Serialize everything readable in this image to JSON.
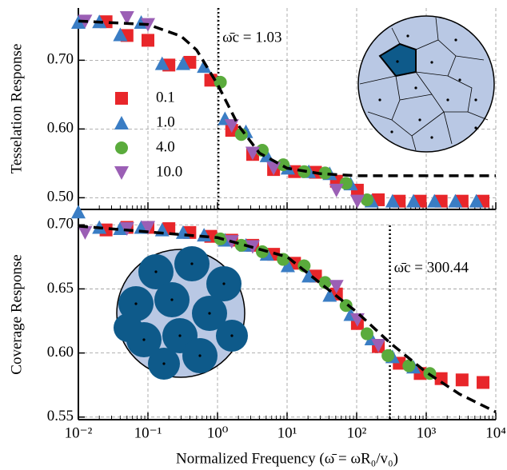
{
  "chart_data": [
    {
      "type": "scatter",
      "ylabel": "Tesselation Response",
      "xlog": true,
      "grid": true,
      "legend": "center left",
      "xlim": [
        0.01,
        10000
      ],
      "ylim": [
        0.483,
        0.776
      ],
      "yticks": [
        {
          "value": 0.5,
          "label": "0.50"
        },
        {
          "value": 0.6,
          "label": "0.60"
        },
        {
          "value": 0.7,
          "label": "0.70"
        }
      ],
      "vline": {
        "x": 1.03,
        "label": "ω̄c = 1.03"
      },
      "series": [
        {
          "name": "0.1",
          "color": "#e8262a",
          "marker": "s",
          "x": [
            0.025,
            0.05,
            0.1,
            0.2,
            0.4,
            0.8,
            1.6,
            3.2,
            6.4,
            12.8,
            25.6,
            51.2,
            102.4,
            204.8,
            409.6,
            819.2,
            1638,
            3277,
            6554
          ],
          "values": [
            0.756,
            0.736,
            0.729,
            0.693,
            0.697,
            0.671,
            0.598,
            0.563,
            0.541,
            0.538,
            0.537,
            0.524,
            0.511,
            0.497,
            0.495,
            0.495,
            0.495,
            0.495,
            0.495
          ]
        },
        {
          "name": "1.0",
          "color": "#3a7dc4",
          "marker": "^",
          "x": [
            0.01,
            0.02,
            0.04,
            0.08,
            0.16,
            0.32,
            0.64,
            1.28,
            2.56,
            5.12,
            10.24,
            20.48,
            40.96,
            81.92,
            163.8,
            327.7,
            655.4,
            1311,
            2621,
            5243
          ],
          "values": [
            0.755,
            0.756,
            0.737,
            0.755,
            0.695,
            0.695,
            0.691,
            0.615,
            0.596,
            0.561,
            0.543,
            0.538,
            0.535,
            0.52,
            0.495,
            0.495,
            0.495,
            0.495,
            0.495,
            0.495
          ]
        },
        {
          "name": "4.0",
          "color": "#5aab3c",
          "marker": "o",
          "x": [
            1.1,
            2.2,
            4.4,
            8.8,
            17.6,
            35.2,
            70.4,
            140.8
          ],
          "values": [
            0.668,
            0.592,
            0.569,
            0.548,
            0.538,
            0.536,
            0.521,
            0.497
          ]
        },
        {
          "name": "10.0",
          "color": "#9b5fb5",
          "marker": "v",
          "x": [
            0.0125,
            0.05,
            0.1,
            1.6,
            3.2,
            6.4,
            51.2,
            102.4
          ],
          "values": [
            0.757,
            0.762,
            0.752,
            0.605,
            0.565,
            0.543,
            0.511,
            0.495
          ]
        }
      ],
      "fit": {
        "color": "#000000",
        "x": [
          0.01,
          0.1,
          0.3,
          0.5,
          1,
          2,
          4,
          10,
          30,
          100,
          10000
        ],
        "values": [
          0.757,
          0.752,
          0.735,
          0.715,
          0.665,
          0.605,
          0.565,
          0.543,
          0.535,
          0.532,
          0.532
        ]
      }
    },
    {
      "type": "scatter",
      "ylabel": "Coverage Response",
      "xlabel": "Normalized Frequency (ω̄ = ωR₀/v₀)",
      "xlog": true,
      "grid": true,
      "xlim": [
        0.01,
        10000
      ],
      "ylim": [
        0.548,
        0.712
      ],
      "xticks": [
        {
          "value": 0.01,
          "label": "10⁻²"
        },
        {
          "value": 0.1,
          "label": "10⁻¹"
        },
        {
          "value": 1,
          "label": "10⁰"
        },
        {
          "value": 10,
          "label": "10¹"
        },
        {
          "value": 100,
          "label": "10²"
        },
        {
          "value": 1000,
          "label": "10³"
        },
        {
          "value": 10000,
          "label": "10⁴"
        }
      ],
      "yticks": [
        {
          "value": 0.55,
          "label": "0.55"
        },
        {
          "value": 0.6,
          "label": "0.60"
        },
        {
          "value": 0.65,
          "label": "0.65"
        },
        {
          "value": 0.7,
          "label": "0.70"
        }
      ],
      "vline": {
        "x": 300.44,
        "label": "ω̄c = 300.44"
      },
      "series": [
        {
          "color": "#e8262a",
          "marker": "s",
          "x": [
            0.025,
            0.05,
            0.1,
            0.2,
            0.4,
            0.8,
            1.6,
            3.2,
            6.4,
            12.8,
            25.6,
            51.2,
            102.4,
            204.8,
            409.6,
            819.2,
            1638,
            3277,
            6554
          ],
          "values": [
            0.696,
            0.698,
            0.698,
            0.697,
            0.694,
            0.691,
            0.688,
            0.684,
            0.677,
            0.67,
            0.66,
            0.646,
            0.623,
            0.605,
            0.592,
            0.584,
            0.58,
            0.579,
            0.577
          ]
        },
        {
          "color": "#3a7dc4",
          "marker": "^",
          "x": [
            0.01,
            0.02,
            0.04,
            0.08,
            0.16,
            0.32,
            0.64,
            1.28,
            2.56,
            5.12,
            10.24,
            20.48,
            40.96,
            81.92,
            163.8,
            327.7,
            655.4
          ],
          "values": [
            0.71,
            0.698,
            0.697,
            0.698,
            0.696,
            0.694,
            0.692,
            0.688,
            0.684,
            0.677,
            0.668,
            0.66,
            0.645,
            0.63,
            0.611,
            0.597,
            0.589
          ]
        },
        {
          "color": "#5aab3c",
          "marker": "o",
          "x": [
            1.1,
            2.2,
            4.4,
            8.8,
            17.6,
            35.2,
            70.4,
            140.8,
            281.6,
            563,
            1126
          ],
          "values": [
            0.689,
            0.684,
            0.679,
            0.673,
            0.668,
            0.655,
            0.637,
            0.615,
            0.598,
            0.59,
            0.584
          ]
        },
        {
          "color": "#9b5fb5",
          "marker": "v",
          "x": [
            0.0125,
            0.05,
            0.1,
            1.6,
            3.2,
            51.2,
            102.4,
            204.8
          ],
          "values": [
            0.694,
            0.697,
            0.698,
            0.687,
            0.683,
            0.652,
            0.626,
            0.606
          ]
        }
      ],
      "fit": {
        "color": "#000000",
        "x": [
          0.01,
          1,
          10,
          100,
          300,
          1000,
          3000,
          10000
        ],
        "values": [
          0.699,
          0.69,
          0.675,
          0.632,
          0.608,
          0.585,
          0.568,
          0.554
        ]
      }
    }
  ]
}
